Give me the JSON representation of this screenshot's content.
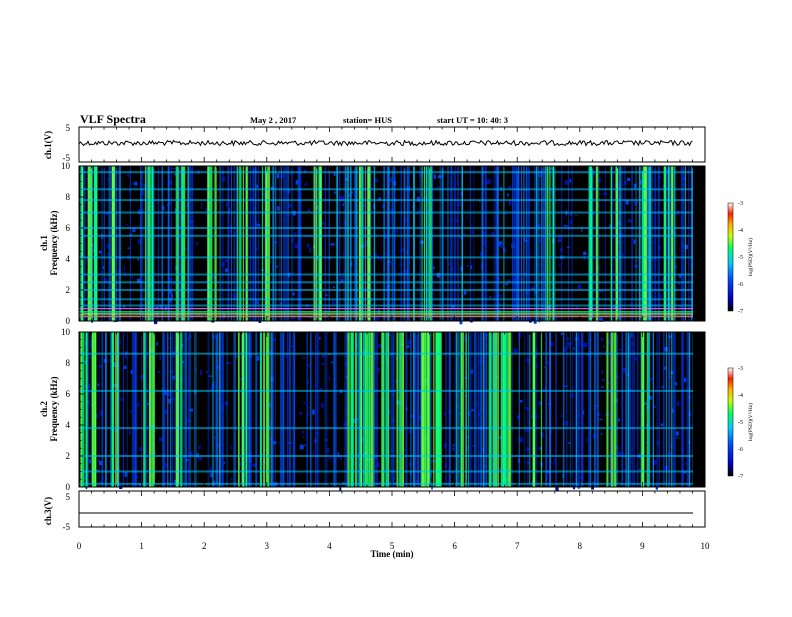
{
  "header": {
    "title": "VLF Spectra",
    "date": "May 2 , 2017",
    "station": "station= HUS",
    "start": "start  UT  =    10: 40: 3"
  },
  "colors": {
    "background": "#000000",
    "frame": "#000000",
    "waveform": "#000000"
  },
  "chart_data": [
    {
      "type": "line",
      "ylabel": "ch.1(V)",
      "x_range": [
        0,
        10
      ],
      "ylim": [
        -5,
        5
      ],
      "y_ticks": [
        "5",
        "-5"
      ],
      "description": "noisy waveform near 0 V",
      "baseline": 0
    },
    {
      "type": "heatmap",
      "ylabel": "ch.1\nFrequency (kHz)",
      "x_range": [
        0,
        10
      ],
      "ylim": [
        0,
        10
      ],
      "y_ticks": [
        "0",
        "2",
        "4",
        "6",
        "8",
        "10"
      ],
      "colorbar": {
        "label": "log(PSD)(V²/Hz)",
        "range": [
          -7,
          -3
        ],
        "ticks": [
          "-3",
          "-4",
          "-5",
          "-6",
          "-7"
        ]
      },
      "bright_bands_khz": [
        0.3,
        0.5,
        1.0,
        1.4,
        2.0,
        2.5,
        3.0,
        4.1,
        5.5,
        6.0,
        7.0,
        7.8,
        8.5,
        9.6
      ]
    },
    {
      "type": "heatmap",
      "ylabel": "ch.2\nFrequency (kHz)",
      "x_range": [
        0,
        10
      ],
      "ylim": [
        0,
        10
      ],
      "y_ticks": [
        "0",
        "2",
        "4",
        "6",
        "8",
        "10"
      ],
      "colorbar": {
        "label": "log(PSD)(V²/Hz)",
        "range": [
          -7,
          -3
        ],
        "ticks": [
          "-3",
          "-4",
          "-5",
          "-6",
          "-7"
        ]
      },
      "bright_bands_khz": [
        0.2,
        1.0,
        2.0,
        3.8,
        6.2,
        8.6
      ]
    },
    {
      "type": "line",
      "ylabel": "ch.3(V)",
      "x_range": [
        0,
        10
      ],
      "ylim": [
        -5,
        5
      ],
      "y_ticks": [
        "5",
        "-5"
      ],
      "description": "flat line",
      "baseline": -1
    }
  ],
  "x_axis": {
    "label": "Time  (min)",
    "ticks": [
      "0",
      "1",
      "2",
      "3",
      "4",
      "5",
      "6",
      "7",
      "8",
      "9",
      "10"
    ]
  }
}
